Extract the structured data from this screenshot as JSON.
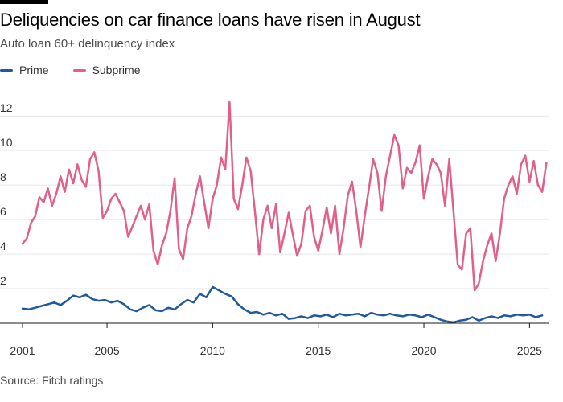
{
  "title": "Deliquencies on car finance loans have risen in August",
  "subtitle": "Auto loan 60+ delinquency index",
  "source": "Source: Fitch ratings",
  "colors": {
    "prime": "#1f5aa0",
    "subprime": "#e0608a",
    "grid": "#e6e6e6",
    "axis": "#1a1a1a",
    "text": "#333333"
  },
  "chart_data": {
    "type": "line",
    "title": "Deliquencies on car finance loans have risen in August",
    "subtitle": "Auto loan 60+ delinquency index",
    "xlabel": "",
    "ylabel": "",
    "xlim": [
      2001.0,
      2025.9
    ],
    "ylim": [
      0,
      13.5
    ],
    "yticks": [
      2,
      4,
      6,
      8,
      10,
      12
    ],
    "xticks": [
      2001,
      2005,
      2010,
      2015,
      2020,
      2025
    ],
    "xtick_labels": [
      "2001",
      "2005",
      "2010",
      "2015",
      "2020",
      "2025"
    ],
    "legend_position": "top-left",
    "grid": true,
    "series": [
      {
        "name": "Prime",
        "color": "#1f5aa0",
        "points": [
          [
            2001.0,
            0.85
          ],
          [
            2001.3,
            0.8
          ],
          [
            2001.6,
            0.9
          ],
          [
            2001.9,
            1.0
          ],
          [
            2002.2,
            1.1
          ],
          [
            2002.5,
            1.2
          ],
          [
            2002.8,
            1.05
          ],
          [
            2003.1,
            1.3
          ],
          [
            2003.4,
            1.6
          ],
          [
            2003.7,
            1.5
          ],
          [
            2004.0,
            1.65
          ],
          [
            2004.3,
            1.4
          ],
          [
            2004.6,
            1.3
          ],
          [
            2004.9,
            1.35
          ],
          [
            2005.2,
            1.2
          ],
          [
            2005.5,
            1.3
          ],
          [
            2005.8,
            1.1
          ],
          [
            2006.1,
            0.8
          ],
          [
            2006.4,
            0.7
          ],
          [
            2006.7,
            0.9
          ],
          [
            2007.0,
            1.05
          ],
          [
            2007.3,
            0.75
          ],
          [
            2007.6,
            0.7
          ],
          [
            2007.9,
            0.9
          ],
          [
            2008.2,
            0.8
          ],
          [
            2008.5,
            1.1
          ],
          [
            2008.8,
            1.35
          ],
          [
            2009.1,
            1.2
          ],
          [
            2009.4,
            1.7
          ],
          [
            2009.7,
            1.5
          ],
          [
            2010.0,
            2.1
          ],
          [
            2010.3,
            1.9
          ],
          [
            2010.6,
            1.7
          ],
          [
            2010.9,
            1.55
          ],
          [
            2011.2,
            1.1
          ],
          [
            2011.5,
            0.8
          ],
          [
            2011.8,
            0.6
          ],
          [
            2012.1,
            0.65
          ],
          [
            2012.4,
            0.5
          ],
          [
            2012.7,
            0.6
          ],
          [
            2013.0,
            0.45
          ],
          [
            2013.3,
            0.55
          ],
          [
            2013.6,
            0.25
          ],
          [
            2013.9,
            0.3
          ],
          [
            2014.2,
            0.4
          ],
          [
            2014.5,
            0.3
          ],
          [
            2014.8,
            0.45
          ],
          [
            2015.1,
            0.4
          ],
          [
            2015.4,
            0.5
          ],
          [
            2015.7,
            0.35
          ],
          [
            2016.0,
            0.55
          ],
          [
            2016.3,
            0.45
          ],
          [
            2016.6,
            0.5
          ],
          [
            2016.9,
            0.55
          ],
          [
            2017.2,
            0.4
          ],
          [
            2017.5,
            0.6
          ],
          [
            2017.8,
            0.5
          ],
          [
            2018.1,
            0.45
          ],
          [
            2018.4,
            0.55
          ],
          [
            2018.7,
            0.45
          ],
          [
            2019.0,
            0.4
          ],
          [
            2019.3,
            0.5
          ],
          [
            2019.6,
            0.45
          ],
          [
            2019.9,
            0.35
          ],
          [
            2020.2,
            0.5
          ],
          [
            2020.5,
            0.35
          ],
          [
            2020.8,
            0.2
          ],
          [
            2021.1,
            0.1
          ],
          [
            2021.4,
            0.05
          ],
          [
            2021.7,
            0.15
          ],
          [
            2022.0,
            0.2
          ],
          [
            2022.3,
            0.35
          ],
          [
            2022.6,
            0.15
          ],
          [
            2022.9,
            0.3
          ],
          [
            2023.2,
            0.4
          ],
          [
            2023.5,
            0.3
          ],
          [
            2023.8,
            0.45
          ],
          [
            2024.1,
            0.4
          ],
          [
            2024.4,
            0.5
          ],
          [
            2024.7,
            0.45
          ],
          [
            2025.0,
            0.5
          ],
          [
            2025.3,
            0.35
          ],
          [
            2025.6,
            0.45
          ]
        ]
      },
      {
        "name": "Subprime",
        "color": "#e0608a",
        "points": [
          [
            2001.0,
            4.6
          ],
          [
            2001.2,
            4.9
          ],
          [
            2001.4,
            5.8
          ],
          [
            2001.6,
            6.2
          ],
          [
            2001.8,
            7.3
          ],
          [
            2002.0,
            7.0
          ],
          [
            2002.2,
            7.8
          ],
          [
            2002.4,
            6.8
          ],
          [
            2002.6,
            7.5
          ],
          [
            2002.8,
            8.5
          ],
          [
            2003.0,
            7.6
          ],
          [
            2003.2,
            8.9
          ],
          [
            2003.4,
            8.1
          ],
          [
            2003.6,
            9.2
          ],
          [
            2003.8,
            8.3
          ],
          [
            2004.0,
            7.9
          ],
          [
            2004.2,
            9.5
          ],
          [
            2004.4,
            9.9
          ],
          [
            2004.6,
            8.8
          ],
          [
            2004.8,
            6.1
          ],
          [
            2005.0,
            6.5
          ],
          [
            2005.2,
            7.2
          ],
          [
            2005.4,
            7.5
          ],
          [
            2005.6,
            7.0
          ],
          [
            2005.8,
            6.5
          ],
          [
            2006.0,
            5.0
          ],
          [
            2006.2,
            5.6
          ],
          [
            2006.4,
            6.2
          ],
          [
            2006.6,
            6.8
          ],
          [
            2006.8,
            6.0
          ],
          [
            2007.0,
            6.9
          ],
          [
            2007.2,
            4.2
          ],
          [
            2007.4,
            3.4
          ],
          [
            2007.6,
            4.5
          ],
          [
            2007.8,
            5.2
          ],
          [
            2008.0,
            6.5
          ],
          [
            2008.2,
            8.4
          ],
          [
            2008.4,
            4.3
          ],
          [
            2008.6,
            3.7
          ],
          [
            2008.8,
            5.5
          ],
          [
            2009.0,
            6.2
          ],
          [
            2009.2,
            7.5
          ],
          [
            2009.4,
            8.5
          ],
          [
            2009.6,
            7.0
          ],
          [
            2009.8,
            5.5
          ],
          [
            2010.0,
            7.2
          ],
          [
            2010.2,
            8.0
          ],
          [
            2010.4,
            9.6
          ],
          [
            2010.6,
            8.9
          ],
          [
            2010.8,
            12.8
          ],
          [
            2011.0,
            7.2
          ],
          [
            2011.2,
            6.6
          ],
          [
            2011.4,
            8.0
          ],
          [
            2011.6,
            9.6
          ],
          [
            2011.8,
            8.8
          ],
          [
            2012.0,
            6.5
          ],
          [
            2012.2,
            4.0
          ],
          [
            2012.4,
            6.0
          ],
          [
            2012.6,
            6.8
          ],
          [
            2012.8,
            5.5
          ],
          [
            2013.0,
            6.9
          ],
          [
            2013.2,
            4.1
          ],
          [
            2013.4,
            5.2
          ],
          [
            2013.6,
            6.4
          ],
          [
            2013.8,
            5.1
          ],
          [
            2014.0,
            3.9
          ],
          [
            2014.2,
            4.6
          ],
          [
            2014.4,
            6.5
          ],
          [
            2014.6,
            6.8
          ],
          [
            2014.8,
            5.0
          ],
          [
            2015.0,
            4.2
          ],
          [
            2015.2,
            5.4
          ],
          [
            2015.4,
            6.7
          ],
          [
            2015.6,
            5.2
          ],
          [
            2015.8,
            6.8
          ],
          [
            2016.0,
            4.0
          ],
          [
            2016.2,
            5.5
          ],
          [
            2016.4,
            7.4
          ],
          [
            2016.6,
            8.2
          ],
          [
            2016.8,
            6.5
          ],
          [
            2017.0,
            4.4
          ],
          [
            2017.2,
            6.2
          ],
          [
            2017.4,
            7.8
          ],
          [
            2017.6,
            9.5
          ],
          [
            2017.8,
            8.7
          ],
          [
            2018.0,
            6.5
          ],
          [
            2018.2,
            8.5
          ],
          [
            2018.4,
            9.7
          ],
          [
            2018.6,
            10.9
          ],
          [
            2018.8,
            10.3
          ],
          [
            2019.0,
            7.8
          ],
          [
            2019.2,
            9.0
          ],
          [
            2019.4,
            8.7
          ],
          [
            2019.6,
            9.3
          ],
          [
            2019.8,
            10.3
          ],
          [
            2020.0,
            7.2
          ],
          [
            2020.2,
            8.5
          ],
          [
            2020.4,
            9.5
          ],
          [
            2020.6,
            9.2
          ],
          [
            2020.8,
            8.7
          ],
          [
            2021.0,
            6.8
          ],
          [
            2021.2,
            9.5
          ],
          [
            2021.4,
            6.5
          ],
          [
            2021.6,
            3.4
          ],
          [
            2021.8,
            3.1
          ],
          [
            2022.0,
            5.2
          ],
          [
            2022.2,
            5.5
          ],
          [
            2022.4,
            1.9
          ],
          [
            2022.6,
            2.3
          ],
          [
            2022.8,
            3.6
          ],
          [
            2023.0,
            4.5
          ],
          [
            2023.2,
            5.2
          ],
          [
            2023.4,
            3.6
          ],
          [
            2023.6,
            5.2
          ],
          [
            2023.8,
            7.2
          ],
          [
            2024.0,
            8.0
          ],
          [
            2024.2,
            8.5
          ],
          [
            2024.4,
            7.5
          ],
          [
            2024.6,
            9.2
          ],
          [
            2024.8,
            9.7
          ],
          [
            2025.0,
            8.2
          ],
          [
            2025.2,
            9.4
          ],
          [
            2025.4,
            8.0
          ],
          [
            2025.6,
            7.6
          ],
          [
            2025.8,
            9.3
          ]
        ]
      }
    ]
  }
}
